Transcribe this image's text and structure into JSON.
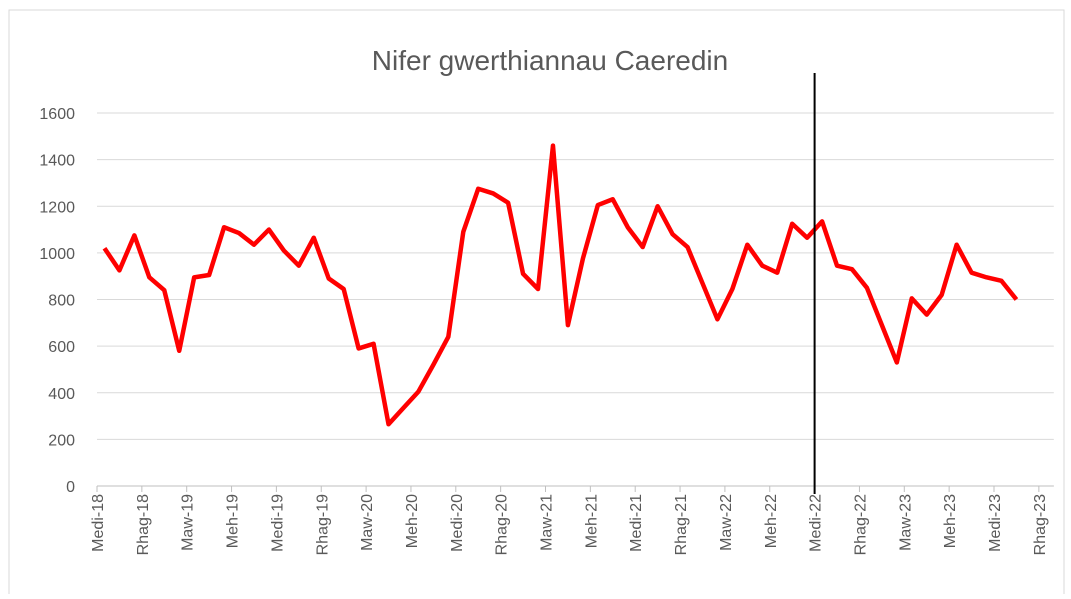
{
  "chart_data": {
    "type": "line",
    "title": "Nifer gwerthiannau Caeredin",
    "categories": [
      "Medi-18",
      null,
      null,
      "Rhag-18",
      null,
      null,
      "Maw-19",
      null,
      null,
      "Meh-19",
      null,
      null,
      "Medi-19",
      null,
      null,
      "Rhag-19",
      null,
      null,
      "Maw-20",
      null,
      null,
      "Meh-20",
      null,
      null,
      "Medi-20",
      null,
      null,
      "Rhag-20",
      null,
      null,
      "Maw-21",
      null,
      null,
      "Meh-21",
      null,
      null,
      "Medi-21",
      null,
      null,
      "Rhag-21",
      null,
      null,
      "Maw-22",
      null,
      null,
      "Meh-22",
      null,
      null,
      "Medi-22",
      null,
      null,
      "Rhag-22",
      null,
      null,
      "Maw-23",
      null,
      null,
      "Meh-23",
      null,
      null,
      "Medi-23",
      null,
      null,
      "Rhag-23"
    ],
    "series": [
      {
        "name": "Nifer gwerthiannau",
        "color": "#ff0000",
        "values": [
          1020,
          925,
          1075,
          895,
          840,
          580,
          895,
          905,
          1110,
          1085,
          1035,
          1100,
          1010,
          945,
          1065,
          890,
          845,
          590,
          610,
          265,
          335,
          405,
          520,
          640,
          1090,
          1275,
          1255,
          1215,
          910,
          845,
          1460,
          690,
          975,
          1205,
          1230,
          1110,
          1025,
          1200,
          1080,
          1025,
          870,
          715,
          845,
          1035,
          945,
          915,
          1125,
          1065,
          1135,
          945,
          930,
          850,
          690,
          530,
          805,
          735,
          820,
          1035,
          915,
          895,
          880,
          800,
          null,
          null
        ]
      }
    ],
    "ylim": [
      0,
      1600
    ],
    "yticks": [
      0,
      200,
      400,
      600,
      800,
      1000,
      1200,
      1400,
      1600
    ],
    "grid": true,
    "vline_at": "Medi-22"
  }
}
